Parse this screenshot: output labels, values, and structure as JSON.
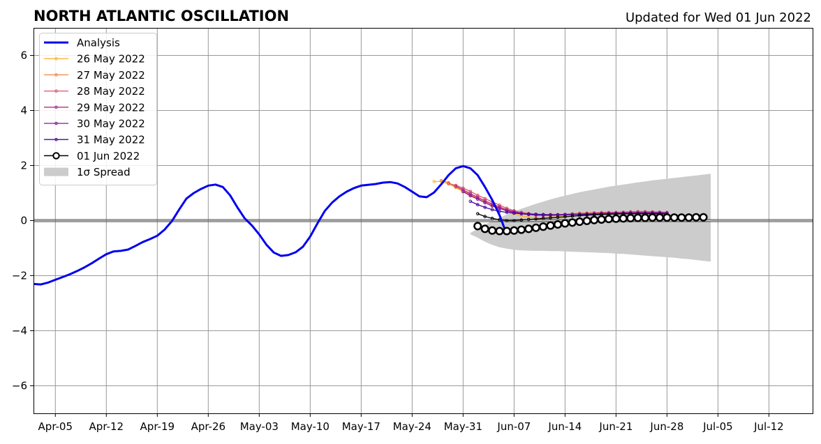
{
  "chart_data": {
    "type": "line",
    "title": "NORTH ATLANTIC OSCILLATION",
    "subtitle": "Updated for Wed 01 Jun 2022",
    "xlabel": "",
    "ylabel": "",
    "xlim": [
      "2022-04-02",
      "2022-07-18"
    ],
    "ylim": [
      -7,
      7
    ],
    "grid": true,
    "zero_line": true,
    "legend_position": "upper-left",
    "x_ticks": [
      {
        "date": "2022-04-05",
        "label": "Apr-05"
      },
      {
        "date": "2022-04-12",
        "label": "Apr-12"
      },
      {
        "date": "2022-04-19",
        "label": "Apr-19"
      },
      {
        "date": "2022-04-26",
        "label": "Apr-26"
      },
      {
        "date": "2022-05-03",
        "label": "May-03"
      },
      {
        "date": "2022-05-10",
        "label": "May-10"
      },
      {
        "date": "2022-05-17",
        "label": "May-17"
      },
      {
        "date": "2022-05-24",
        "label": "May-24"
      },
      {
        "date": "2022-05-31",
        "label": "May-31"
      },
      {
        "date": "2022-06-07",
        "label": "Jun-07"
      },
      {
        "date": "2022-06-14",
        "label": "Jun-14"
      },
      {
        "date": "2022-06-21",
        "label": "Jun-21"
      },
      {
        "date": "2022-06-28",
        "label": "Jun-28"
      },
      {
        "date": "2022-07-05",
        "label": "Jul-05"
      },
      {
        "date": "2022-07-12",
        "label": "Jul-12"
      }
    ],
    "y_ticks": [
      {
        "value": 6,
        "label": "6"
      },
      {
        "value": 4,
        "label": "4"
      },
      {
        "value": 2,
        "label": "2"
      },
      {
        "value": 0,
        "label": "0"
      },
      {
        "value": -2,
        "label": "−2"
      },
      {
        "value": -4,
        "label": "−4"
      },
      {
        "value": -6,
        "label": "−6"
      }
    ],
    "legend": [
      {
        "label": "Analysis",
        "color": "#0000ee",
        "style": "analysis"
      },
      {
        "label": "26 May 2022",
        "color": "#f9b530",
        "style": "small-marker"
      },
      {
        "label": "27 May 2022",
        "color": "#ef8440",
        "style": "small-marker"
      },
      {
        "label": "28 May 2022",
        "color": "#d9566a",
        "style": "small-marker"
      },
      {
        "label": "29 May 2022",
        "color": "#b02d8c",
        "style": "small-marker"
      },
      {
        "label": "30 May 2022",
        "color": "#7f169f",
        "style": "small-marker"
      },
      {
        "label": "31 May 2022",
        "color": "#45089a",
        "style": "small-marker"
      },
      {
        "label": "01 Jun 2022",
        "color": "#000000",
        "style": "big-marker"
      },
      {
        "label": "1σ Spread",
        "color": "#cccccc",
        "style": "patch"
      }
    ],
    "analysis": {
      "name": "Analysis",
      "color": "#0000ee",
      "start_date": "2022-04-02",
      "values": [
        -2.3,
        -2.32,
        -2.25,
        -2.15,
        -2.05,
        -1.95,
        -1.83,
        -1.7,
        -1.55,
        -1.38,
        -1.22,
        -1.12,
        -1.1,
        -1.05,
        -0.92,
        -0.78,
        -0.67,
        -0.55,
        -0.33,
        -0.02,
        0.4,
        0.8,
        1.0,
        1.15,
        1.27,
        1.31,
        1.22,
        0.92,
        0.48,
        0.08,
        -0.18,
        -0.5,
        -0.88,
        -1.16,
        -1.28,
        -1.25,
        -1.15,
        -0.95,
        -0.58,
        -0.1,
        0.35,
        0.65,
        0.88,
        1.05,
        1.18,
        1.27,
        1.3,
        1.33,
        1.38,
        1.4,
        1.35,
        1.22,
        1.05,
        0.88,
        0.85,
        1.02,
        1.32,
        1.65,
        1.9,
        1.98,
        1.9,
        1.65,
        1.22,
        0.75,
        0.2,
        -0.5
      ]
    },
    "forecasts": [
      {
        "name": "26 May 2022",
        "color": "#f9b530",
        "start_date": "2022-05-27",
        "values": [
          1.42,
          1.42,
          1.33,
          1.2,
          1.05,
          0.92,
          0.78,
          0.65,
          0.55,
          0.45,
          0.35,
          0.25,
          0.18,
          0.12,
          0.1,
          0.1,
          0.12,
          0.15,
          0.18,
          0.2,
          0.23,
          0.25,
          0.27,
          0.28,
          0.28,
          0.28,
          0.28,
          0.28,
          0.28,
          0.28,
          0.27,
          0.26,
          0.25
        ]
      },
      {
        "name": "27 May 2022",
        "color": "#ef8440",
        "start_date": "2022-05-28",
        "values": [
          1.45,
          1.38,
          1.22,
          1.08,
          0.95,
          0.82,
          0.7,
          0.58,
          0.47,
          0.38,
          0.3,
          0.25,
          0.22,
          0.2,
          0.2,
          0.21,
          0.22,
          0.23,
          0.25,
          0.27,
          0.28,
          0.29,
          0.3,
          0.3,
          0.3,
          0.3,
          0.3,
          0.29,
          0.28,
          0.27,
          0.25,
          0.24
        ]
      },
      {
        "name": "28 May 2022",
        "color": "#d9566a",
        "start_date": "2022-05-29",
        "values": [
          1.35,
          1.28,
          1.18,
          1.06,
          0.92,
          0.8,
          0.68,
          0.56,
          0.45,
          0.36,
          0.3,
          0.26,
          0.23,
          0.22,
          0.22,
          0.22,
          0.23,
          0.24,
          0.25,
          0.26,
          0.27,
          0.28,
          0.29,
          0.3,
          0.31,
          0.32,
          0.33,
          0.33,
          0.32,
          0.31,
          0.3
        ]
      },
      {
        "name": "29 May 2022",
        "color": "#b02d8c",
        "start_date": "2022-05-30",
        "values": [
          1.25,
          1.12,
          0.98,
          0.85,
          0.72,
          0.6,
          0.5,
          0.4,
          0.33,
          0.27,
          0.23,
          0.2,
          0.2,
          0.2,
          0.21,
          0.22,
          0.23,
          0.24,
          0.25,
          0.26,
          0.27,
          0.28,
          0.28,
          0.29,
          0.3,
          0.3,
          0.3,
          0.3,
          0.3,
          0.29
        ]
      },
      {
        "name": "30 May 2022",
        "color": "#7f169f",
        "start_date": "2022-05-31",
        "values": [
          1.05,
          0.9,
          0.78,
          0.65,
          0.53,
          0.44,
          0.36,
          0.3,
          0.25,
          0.22,
          0.2,
          0.19,
          0.19,
          0.2,
          0.21,
          0.22,
          0.23,
          0.24,
          0.25,
          0.26,
          0.26,
          0.27,
          0.27,
          0.28,
          0.28,
          0.28,
          0.28,
          0.28,
          0.28
        ]
      },
      {
        "name": "31 May 2022",
        "color": "#45089a",
        "start_date": "2022-06-01",
        "values": [
          0.7,
          0.58,
          0.48,
          0.4,
          0.34,
          0.3,
          0.27,
          0.25,
          0.24,
          0.23,
          0.22,
          0.21,
          0.21,
          0.21,
          0.22,
          0.22,
          0.22,
          0.22,
          0.23,
          0.23,
          0.24,
          0.24,
          0.25,
          0.25,
          0.25,
          0.25,
          0.25,
          0.24
        ]
      },
      {
        "name": "01 Jun 2022",
        "color": "#000000",
        "start_date": "2022-06-02",
        "values": [
          0.25,
          0.15,
          0.08,
          0.03,
          0.0,
          0.0,
          0.02,
          0.04,
          0.06,
          0.08,
          0.1,
          0.12,
          0.14,
          0.16,
          0.18,
          0.2,
          0.21,
          0.22,
          0.23,
          0.24,
          0.25,
          0.25,
          0.25,
          0.25,
          0.25,
          0.24,
          0.24
        ]
      }
    ],
    "latest_forecast": {
      "name": "01 Jun 2022",
      "color": "#000000",
      "start_date": "2022-06-02",
      "values": [
        -0.2,
        -0.3,
        -0.36,
        -0.38,
        -0.38,
        -0.36,
        -0.33,
        -0.3,
        -0.26,
        -0.22,
        -0.18,
        -0.14,
        -0.1,
        -0.07,
        -0.04,
        -0.01,
        0.02,
        0.04,
        0.06,
        0.07,
        0.08,
        0.09,
        0.1,
        0.1,
        0.11,
        0.11,
        0.11,
        0.11,
        0.11,
        0.11,
        0.12,
        0.12
      ]
    },
    "spread": {
      "name": "1σ Spread",
      "color": "#cccccc",
      "start_date": "2022-06-01",
      "upper": [
        -0.45,
        -0.3,
        -0.15,
        -0.02,
        0.1,
        0.22,
        0.33,
        0.43,
        0.52,
        0.61,
        0.69,
        0.77,
        0.84,
        0.91,
        0.97,
        1.03,
        1.08,
        1.13,
        1.18,
        1.23,
        1.27,
        1.31,
        1.35,
        1.39,
        1.42,
        1.46,
        1.49,
        1.52,
        1.55,
        1.58,
        1.61,
        1.64,
        1.67,
        1.7
      ],
      "lower": [
        -0.5,
        -0.62,
        -0.77,
        -0.88,
        -0.97,
        -1.02,
        -1.06,
        -1.08,
        -1.09,
        -1.1,
        -1.1,
        -1.11,
        -1.11,
        -1.12,
        -1.13,
        -1.14,
        -1.15,
        -1.16,
        -1.17,
        -1.18,
        -1.2,
        -1.21,
        -1.23,
        -1.25,
        -1.27,
        -1.29,
        -1.31,
        -1.33,
        -1.35,
        -1.38,
        -1.4,
        -1.43,
        -1.46,
        -1.49
      ]
    }
  }
}
